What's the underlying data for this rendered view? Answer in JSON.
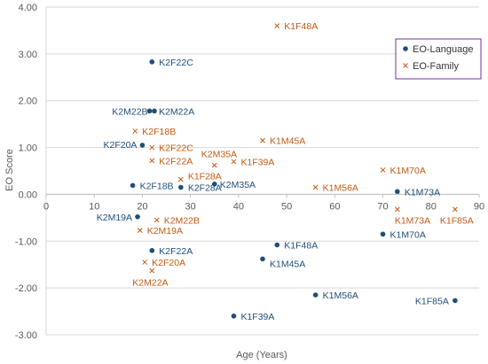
{
  "chart_data": {
    "type": "scatter",
    "title": "",
    "xlabel": "Age (Years)",
    "ylabel": "EO Score",
    "xlim": [
      0,
      90
    ],
    "ylim": [
      -3,
      4
    ],
    "x_ticks": [
      "0",
      "10",
      "20",
      "30",
      "40",
      "50",
      "60",
      "70",
      "80",
      "90"
    ],
    "y_ticks": [
      "4.00",
      "3.00",
      "2.00",
      "1.00",
      "0.00",
      "-1.00",
      "-2.00",
      "-3.00"
    ],
    "grid": "horizontal",
    "legend_position": "top-right",
    "series": [
      {
        "name": "EO-Language",
        "marker": "circle",
        "color": "#1F4E79",
        "points": [
          {
            "label": "K2F22C",
            "x": 22,
            "y": 2.83
          },
          {
            "label": "K2M22B",
            "x": 21.5,
            "y": 1.78
          },
          {
            "label": "K2M22A",
            "x": 22.5,
            "y": 1.78
          },
          {
            "label": "K2F20A",
            "x": 20,
            "y": 1.05
          },
          {
            "label": "K2F18B",
            "x": 18,
            "y": 0.19
          },
          {
            "label": "K2F28A",
            "x": 28,
            "y": 0.15
          },
          {
            "label": "K2M35A",
            "x": 35,
            "y": 0.22
          },
          {
            "label": "K2M19A",
            "x": 19,
            "y": -0.48
          },
          {
            "label": "K2F22A",
            "x": 22,
            "y": -1.2
          },
          {
            "label": "K1F48A",
            "x": 48,
            "y": -1.08
          },
          {
            "label": "K1M45A",
            "x": 45,
            "y": -1.38
          },
          {
            "label": "K1M56A",
            "x": 56,
            "y": -2.15
          },
          {
            "label": "K1F39A",
            "x": 39,
            "y": -2.6
          },
          {
            "label": "K1M73A",
            "x": 73,
            "y": 0.06
          },
          {
            "label": "K1M70A",
            "x": 70,
            "y": -0.85
          },
          {
            "label": "K1F85A",
            "x": 85,
            "y": -2.27
          }
        ]
      },
      {
        "name": "EO-Family",
        "marker": "x",
        "color": "#C55A11",
        "points": [
          {
            "label": "K1F48A",
            "x": 48,
            "y": 3.6
          },
          {
            "label": "K2F18B",
            "x": 18.5,
            "y": 1.35
          },
          {
            "label": "K2F22C",
            "x": 22,
            "y": 1.0
          },
          {
            "label": "K2F22A",
            "x": 22,
            "y": 0.72
          },
          {
            "label": "K2M35A",
            "x": 35,
            "y": 0.62
          },
          {
            "label": "K1M45A",
            "x": 45,
            "y": 1.15
          },
          {
            "label": "K1F39A",
            "x": 39,
            "y": 0.7
          },
          {
            "label": "K1F28A",
            "x": 28,
            "y": 0.32
          },
          {
            "label": "K1M56A",
            "x": 56,
            "y": 0.15
          },
          {
            "label": "K1M70A",
            "x": 70,
            "y": 0.52
          },
          {
            "label": "K1M73A",
            "x": 73,
            "y": -0.32
          },
          {
            "label": "K1F85A",
            "x": 85,
            "y": -0.32
          },
          {
            "label": "K2M22B",
            "x": 23,
            "y": -0.55
          },
          {
            "label": "K2M19A",
            "x": 19.5,
            "y": -0.77
          },
          {
            "label": "K2F20A",
            "x": 20.5,
            "y": -1.45
          },
          {
            "label": "K2M22A",
            "x": 22,
            "y": -1.63
          }
        ]
      }
    ]
  }
}
